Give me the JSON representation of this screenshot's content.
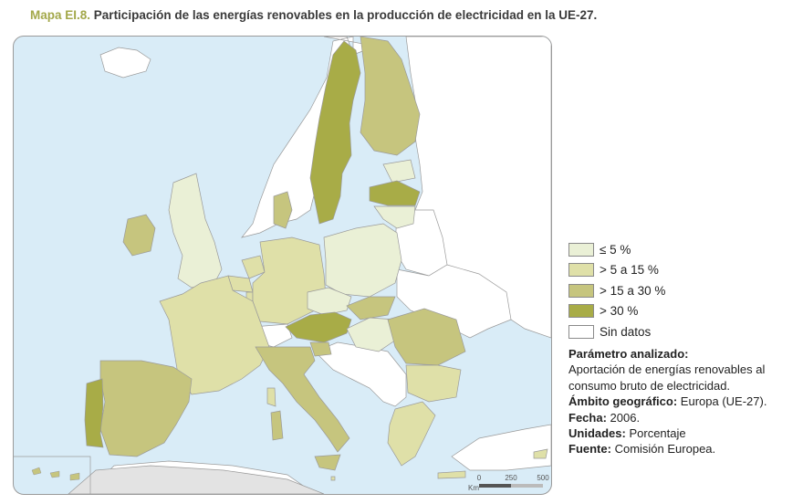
{
  "header": {
    "code": "Mapa EI.8.",
    "title": "Participación de las energías renovables en la producción de electricidad en la UE-27."
  },
  "colors": {
    "sea": "#d9ecf7",
    "non_eu_land": "#ffffff",
    "non_eu_gray": "#e3e3e3",
    "border": "#9a9a9a",
    "class_1": "#eaf0d6",
    "class_2": "#dfe0a8",
    "class_3": "#c6c57e",
    "class_4": "#a8ac47",
    "no_data": "#ffffff"
  },
  "legend": {
    "items": [
      {
        "label": "≤ 5 %",
        "color": "#eaf0d6"
      },
      {
        "label": "> 5 a 15 %",
        "color": "#dfe0a8"
      },
      {
        "label": "> 15 a 30 %",
        "color": "#c6c57e"
      },
      {
        "label": "> 30 %",
        "color": "#a8ac47"
      },
      {
        "label": "Sin datos",
        "color": "#ffffff"
      }
    ]
  },
  "info": {
    "param_label": "Parámetro analizado:",
    "param_value": "Aportación de energías renovables al consumo bruto de electricidad.",
    "scope_label": "Ámbito geográfico:",
    "scope_value": "Europa (UE-27).",
    "date_label": "Fecha:",
    "date_value": "2006.",
    "units_label": "Unidades:",
    "units_value": "Porcentaje",
    "source_label": "Fuente:",
    "source_value": "Comisión Europea."
  },
  "scale_bar": {
    "ticks": [
      "0",
      "250",
      "500"
    ],
    "unit": "Km"
  }
}
